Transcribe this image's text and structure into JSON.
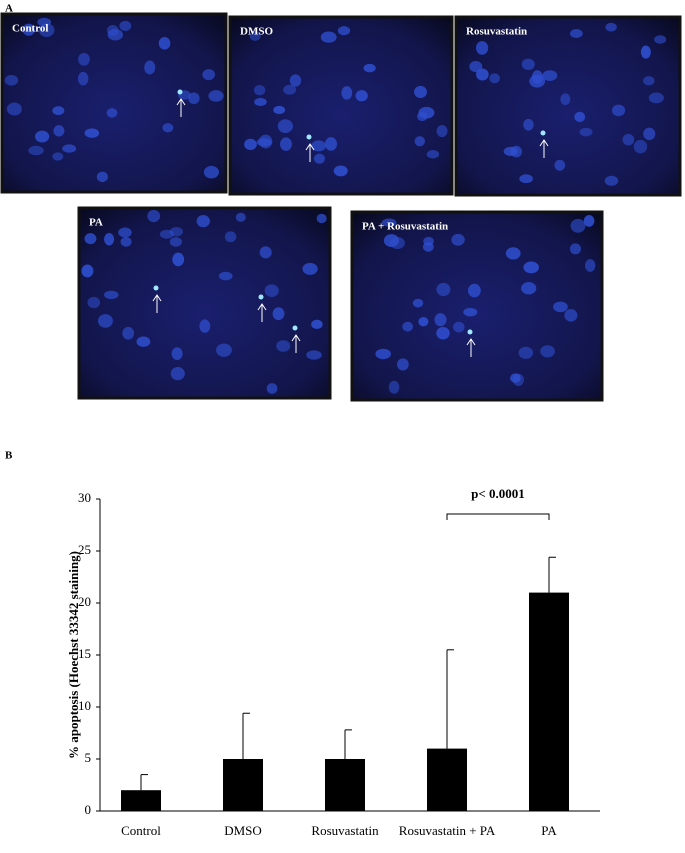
{
  "panel_a": {
    "label": "A",
    "images": [
      "Control",
      "DMSO",
      "Rosuvastatin",
      "PA",
      "PA + Rosuvastatin"
    ]
  },
  "panel_b": {
    "label": "B"
  },
  "chart_data": {
    "type": "bar",
    "ylabel": "% apoptosis  (Hoechst 33342  staining)",
    "categories": [
      "Control",
      "DMSO",
      "Rosuvastatin",
      "Rosuvastatin + PA",
      "PA"
    ],
    "values": [
      2,
      5,
      5,
      6,
      21
    ],
    "errors": [
      1.5,
      4.4,
      2.8,
      9.5,
      3.4
    ],
    "color": "#000000",
    "ylim": [
      0,
      30
    ],
    "yticks": [
      0,
      5,
      10,
      15,
      20,
      25,
      30
    ],
    "annotation": "p< 0.0001"
  }
}
